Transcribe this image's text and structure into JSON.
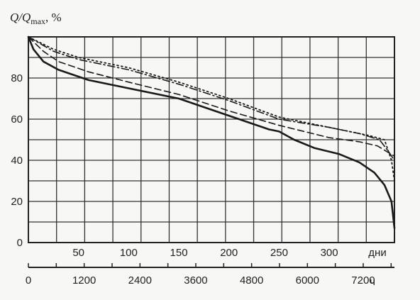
{
  "chart_data": {
    "type": "line",
    "y_title": {
      "main": "Q/Q",
      "sub": "max",
      "suffix": ", %"
    },
    "ylim": [
      0,
      100
    ],
    "y_ticks": [
      "0",
      "20",
      "40",
      "60",
      "80"
    ],
    "y_tick_values": [
      0,
      20,
      40,
      60,
      80
    ],
    "xlim_days": [
      0,
      365
    ],
    "x_days_ticks": [
      "50",
      "100",
      "150",
      "200",
      "250",
      "300"
    ],
    "x_days_tick_values": [
      50,
      100,
      150,
      200,
      250,
      300
    ],
    "x_days_unit": "дни",
    "x_hours_ticks": [
      "0",
      "1200",
      "2400",
      "3600",
      "4800",
      "6000",
      "7200"
    ],
    "x_hours_tick_values": [
      0,
      1200,
      2400,
      3600,
      4800,
      6000,
      7200
    ],
    "x_hours_unit": "ч",
    "grid": true,
    "series": [
      {
        "style": "solid",
        "points": [
          [
            0,
            100
          ],
          [
            5,
            94
          ],
          [
            15,
            88
          ],
          [
            30,
            84
          ],
          [
            60,
            79
          ],
          [
            100,
            75
          ],
          [
            150,
            70
          ],
          [
            180,
            65
          ],
          [
            210,
            60
          ],
          [
            240,
            55
          ],
          [
            250,
            54
          ],
          [
            265,
            50
          ],
          [
            285,
            46
          ],
          [
            310,
            43
          ],
          [
            330,
            39
          ],
          [
            345,
            34
          ],
          [
            355,
            28
          ],
          [
            362,
            20
          ],
          [
            365,
            7
          ]
        ]
      },
      {
        "style": "dashed",
        "points": [
          [
            0,
            100
          ],
          [
            15,
            93
          ],
          [
            30,
            88
          ],
          [
            60,
            83
          ],
          [
            100,
            78
          ],
          [
            150,
            72
          ],
          [
            200,
            64
          ],
          [
            250,
            57
          ],
          [
            300,
            51
          ],
          [
            330,
            49
          ],
          [
            348,
            47
          ],
          [
            365,
            42
          ]
        ]
      },
      {
        "style": "dash-dot",
        "points": [
          [
            0,
            100
          ],
          [
            25,
            93
          ],
          [
            50,
            89
          ],
          [
            100,
            84
          ],
          [
            150,
            77
          ],
          [
            200,
            69
          ],
          [
            250,
            60
          ],
          [
            300,
            56
          ],
          [
            330,
            53
          ],
          [
            350,
            50
          ],
          [
            358,
            45
          ],
          [
            365,
            40
          ]
        ]
      },
      {
        "style": "dotted",
        "points": [
          [
            0,
            100
          ],
          [
            25,
            94
          ],
          [
            50,
            90
          ],
          [
            100,
            85
          ],
          [
            150,
            78
          ],
          [
            200,
            70
          ],
          [
            250,
            61
          ],
          [
            300,
            56
          ],
          [
            340,
            52
          ],
          [
            355,
            50
          ],
          [
            362,
            40
          ],
          [
            365,
            30
          ]
        ]
      }
    ]
  }
}
